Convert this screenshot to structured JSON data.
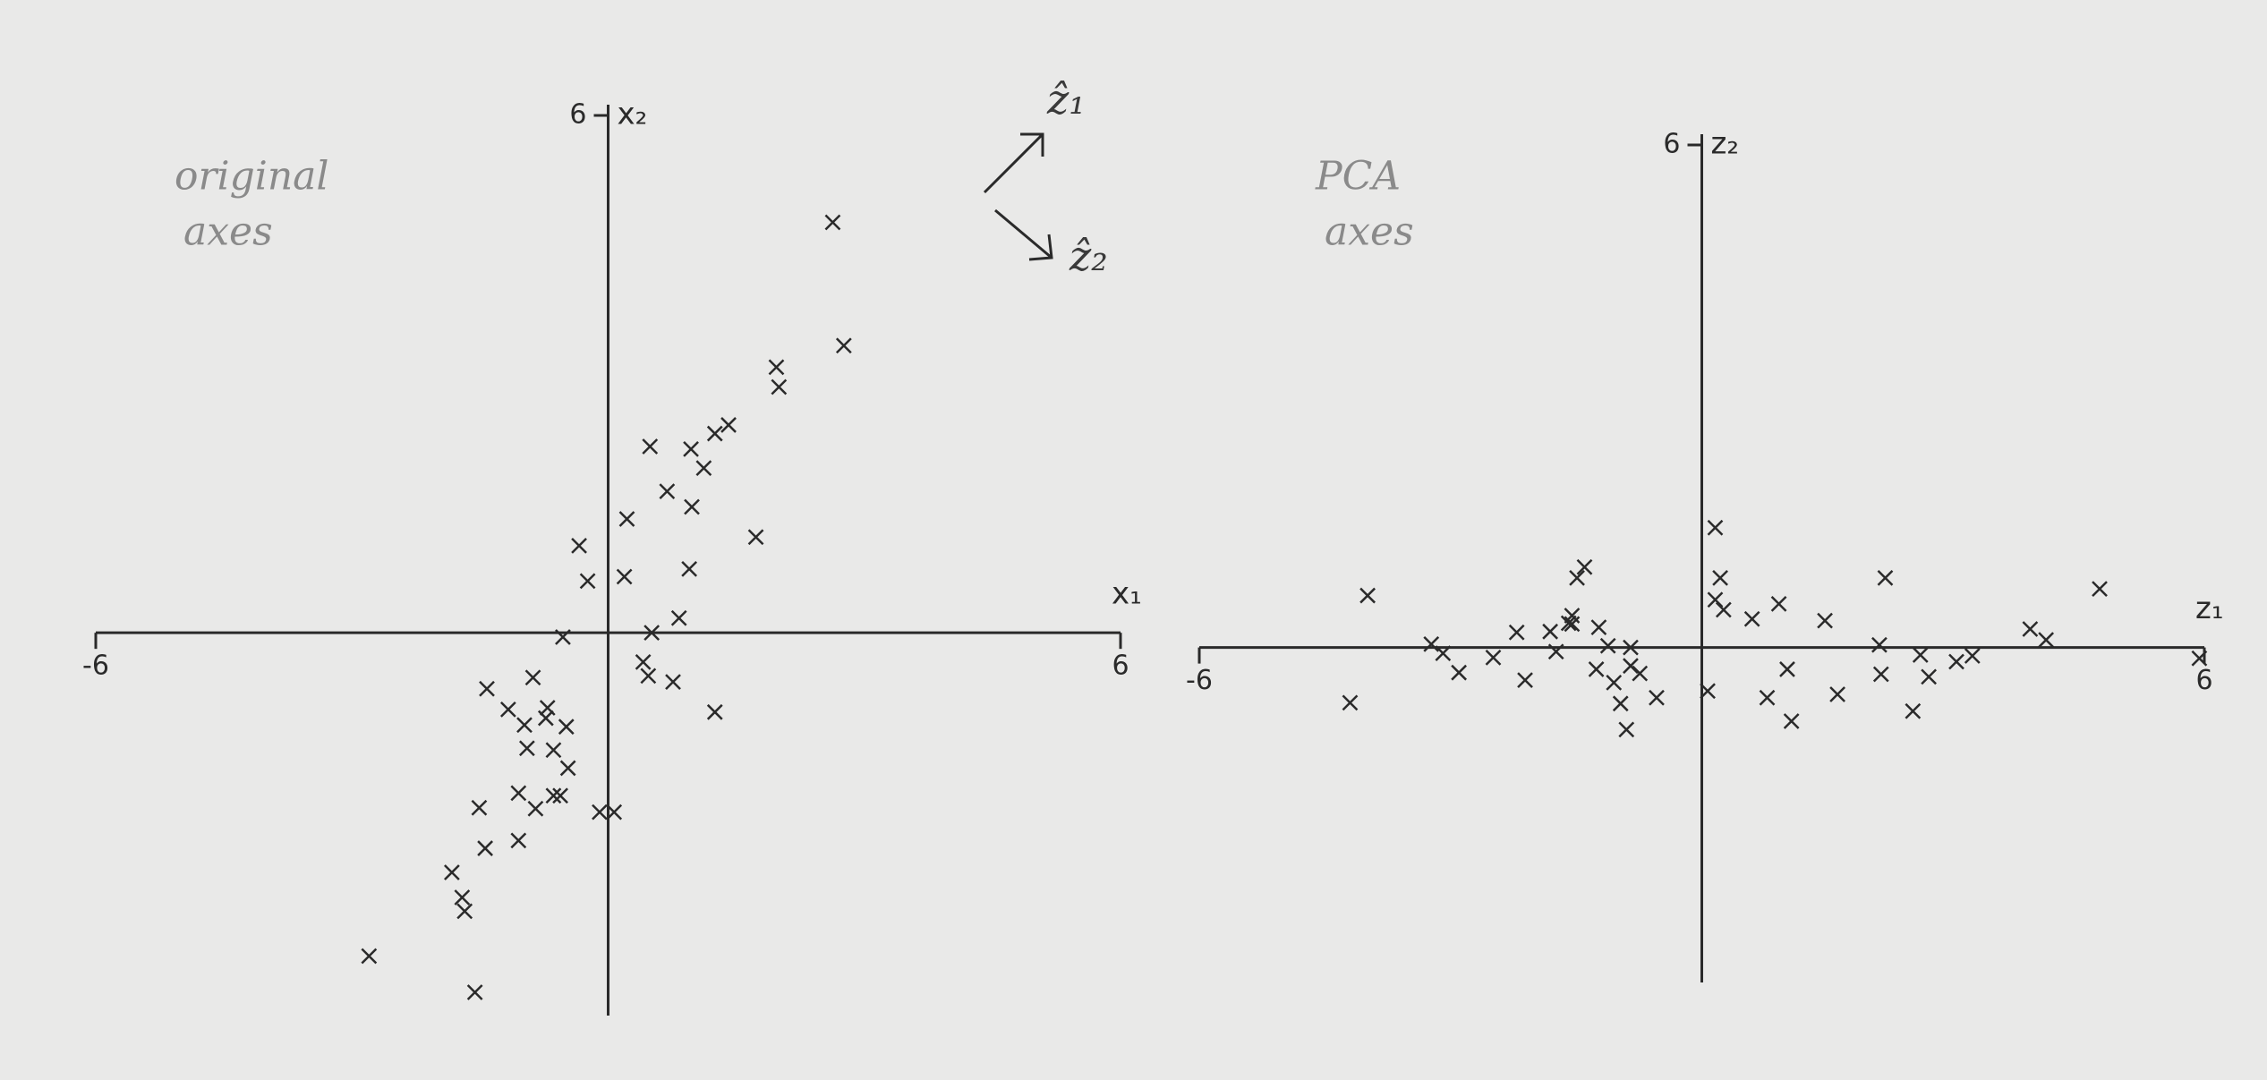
{
  "chart_data": [
    {
      "type": "scatter",
      "label_lines": [
        "original",
        "axes"
      ],
      "x_label": "x₁",
      "y_label": "x₂",
      "xlim": [
        -6,
        6
      ],
      "ylim": [
        -4.44,
        6
      ],
      "xticks": [
        -6,
        6
      ],
      "yticks": [
        6
      ],
      "annotations": [
        "ẑ₁",
        "ẑ₂"
      ],
      "color": "#2a2a2a",
      "x": [
        2.63,
        2.76,
        1.97,
        2.0,
        1.41,
        1.25,
        0.49,
        0.97,
        1.12,
        0.69,
        0.98,
        0.22,
        1.73,
        -0.34,
        0.95,
        0.19,
        -0.24,
        0.83,
        -0.53,
        0.51,
        0.41,
        0.47,
        0.76,
        1.25,
        -0.88,
        -1.42,
        -1.17,
        -0.71,
        -0.98,
        -0.73,
        -0.49,
        -0.95,
        -0.64,
        -0.47,
        -1.05,
        -0.64,
        -0.56,
        -0.85,
        -1.51,
        -0.1,
        0.07,
        -1.05,
        -1.44,
        -1.83,
        -1.71,
        -1.68,
        -2.8,
        -1.56
      ],
      "values": [
        4.76,
        3.33,
        3.08,
        2.85,
        2.41,
        2.31,
        2.16,
        2.13,
        1.91,
        1.64,
        1.46,
        1.32,
        1.11,
        1.01,
        0.74,
        0.65,
        0.6,
        0.17,
        -0.05,
        0.0,
        -0.34,
        -0.5,
        -0.57,
        -0.92,
        -0.52,
        -0.65,
        -0.89,
        -0.87,
        -1.07,
        -0.99,
        -1.09,
        -1.34,
        -1.36,
        -1.57,
        -1.86,
        -1.89,
        -1.89,
        -2.04,
        -2.03,
        -2.08,
        -2.08,
        -2.41,
        -2.5,
        -2.78,
        -3.07,
        -3.23,
        -3.75,
        -4.17
      ]
    },
    {
      "type": "scatter",
      "label_lines": [
        "PCA",
        "axes"
      ],
      "x_label": "z₁",
      "y_label": "z₂",
      "xlim": [
        -6,
        6
      ],
      "ylim": [
        -4,
        6
      ],
      "xticks": [
        -6,
        6
      ],
      "yticks": [
        6
      ],
      "color": "#2a2a2a",
      "x": [
        -3.99,
        -4.2,
        -3.23,
        -3.09,
        -2.9,
        -2.49,
        -2.21,
        -2.11,
        -1.81,
        -1.74,
        -1.59,
        -1.55,
        -1.55,
        -1.49,
        -1.4,
        -1.23,
        -1.26,
        -1.12,
        -1.05,
        -0.97,
        -0.9,
        -0.85,
        -0.85,
        -0.74,
        -0.54,
        0.07,
        0.16,
        0.22,
        0.16,
        0.26,
        0.6,
        0.92,
        1.02,
        0.78,
        1.07,
        1.47,
        1.62,
        2.19,
        2.12,
        2.14,
        2.52,
        2.61,
        2.71,
        3.04,
        3.23,
        3.92,
        4.11,
        4.75,
        5.94
      ],
      "values": [
        0.62,
        -0.66,
        0.04,
        -0.07,
        -0.3,
        -0.12,
        0.18,
        -0.39,
        0.19,
        -0.05,
        0.29,
        0.38,
        0.28,
        0.83,
        0.96,
        0.24,
        -0.26,
        0.02,
        -0.42,
        -0.67,
        -0.98,
        0.0,
        -0.22,
        -0.31,
        -0.6,
        -0.52,
        1.43,
        0.83,
        0.57,
        0.45,
        0.34,
        0.52,
        -0.26,
        -0.6,
        -0.88,
        0.32,
        -0.56,
        0.83,
        0.03,
        -0.32,
        -0.76,
        -0.09,
        -0.35,
        -0.17,
        -0.1,
        0.22,
        0.09,
        0.7,
        -0.13
      ]
    }
  ]
}
